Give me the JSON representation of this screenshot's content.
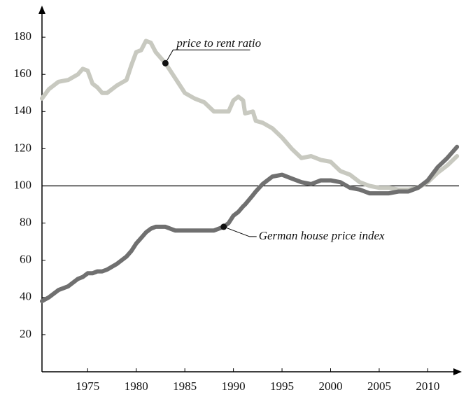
{
  "chart_data": {
    "type": "line",
    "x": [
      1970.3,
      1971,
      1972,
      1973,
      1974,
      1974.5,
      1975,
      1975.5,
      1976,
      1976.5,
      1977,
      1978,
      1979,
      1979.5,
      1980,
      1980.5,
      1981,
      1981.5,
      1982,
      1983,
      1984,
      1985,
      1986,
      1987,
      1988,
      1989,
      1989.5,
      1990,
      1990.5,
      1991,
      1991.2,
      1992,
      1992.3,
      1993,
      1994,
      1995,
      1996,
      1997,
      1998,
      1999,
      2000,
      2001,
      2002,
      2003,
      2004,
      2005,
      2006,
      2007,
      2008,
      2009,
      2010,
      2011,
      2012,
      2013
    ],
    "series": [
      {
        "name": "price to rent ratio",
        "color": "#c8c9c0",
        "values": [
          147,
          152,
          156,
          157,
          160,
          163,
          162,
          155,
          153,
          150,
          150,
          154,
          157,
          165,
          172,
          173,
          178,
          177,
          172,
          166,
          158,
          150,
          147,
          145,
          140,
          140,
          140,
          146,
          148,
          146,
          139,
          140,
          135,
          134,
          131,
          126,
          120,
          115,
          116,
          114,
          113,
          108,
          106,
          102,
          100,
          99,
          99,
          98,
          98,
          99,
          102,
          107,
          111,
          116
        ]
      },
      {
        "name": "German house price index",
        "color": "#707070",
        "values": [
          38,
          40,
          44,
          46,
          50,
          51,
          53,
          53,
          54,
          54,
          55,
          58,
          62,
          65,
          69,
          72,
          75,
          77,
          78,
          78,
          76,
          76,
          76,
          76,
          76,
          78,
          80,
          84,
          86,
          89,
          90,
          95,
          97,
          101,
          105,
          106,
          104,
          102,
          101,
          103,
          103,
          102,
          99,
          98,
          96,
          96,
          96,
          97,
          97,
          99,
          103,
          110,
          115,
          121
        ]
      }
    ],
    "annotations": [
      {
        "text": "price to rent ratio",
        "x": 1983,
        "y": 166
      },
      {
        "text": "German house price index",
        "x": 1989,
        "y": 78
      }
    ],
    "reference_line": 100,
    "xlim": [
      1970.3,
      2013.5
    ],
    "ylim": [
      0,
      197
    ],
    "xticks": [
      1975,
      1980,
      1985,
      1990,
      1995,
      2000,
      2005,
      2010
    ],
    "yticks": [
      20,
      40,
      60,
      80,
      100,
      120,
      140,
      160,
      180
    ]
  }
}
